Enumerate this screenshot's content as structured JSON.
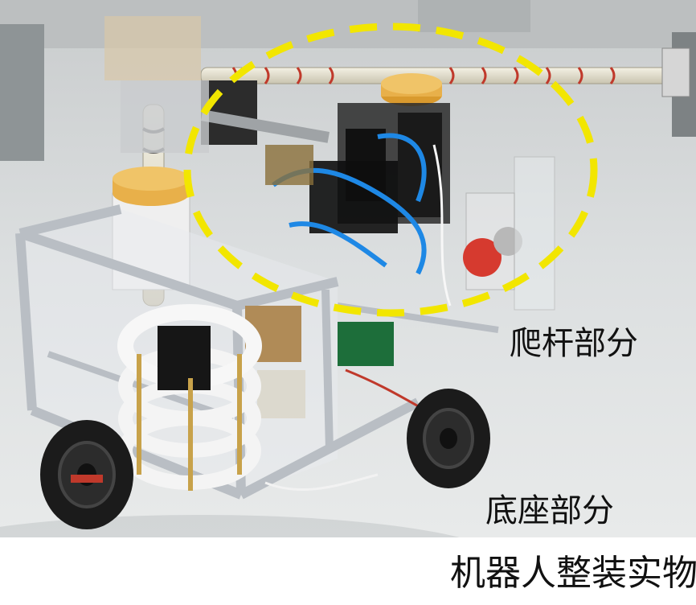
{
  "labels": {
    "climbing_part": "爬杆部分",
    "base_part": "底座部分"
  },
  "caption": "机器人整装实物",
  "colors": {
    "highlight_circle": "#f2e600",
    "floor": "#d9dcdd",
    "frame_aluminum": "#b9bec4",
    "wheel": "#1b1b1b",
    "spool_yellow": "#e8b04a"
  }
}
